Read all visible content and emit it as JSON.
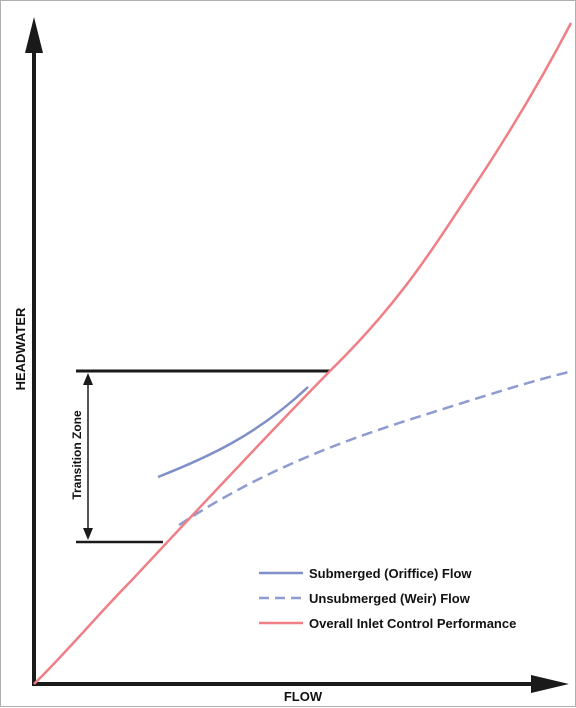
{
  "diagram": {
    "y_axis_label": "HEADWATER",
    "x_axis_label": "FLOW",
    "transition_label": "Transition Zone",
    "legend": [
      {
        "key": "submerged",
        "label": "Submerged (Oriffice) Flow",
        "color": "#7f8fc9",
        "style": "solid"
      },
      {
        "key": "unsubmerged",
        "label": "Unsubmerged (Weir) Flow",
        "color": "#8e9ad2",
        "style": "dashed"
      },
      {
        "key": "overall",
        "label": "Overall Inlet Control Performance",
        "color": "#ef7f85",
        "style": "solid"
      }
    ],
    "colors": {
      "axis": "#1a1a1a",
      "frame": "#b0b0b0"
    }
  }
}
